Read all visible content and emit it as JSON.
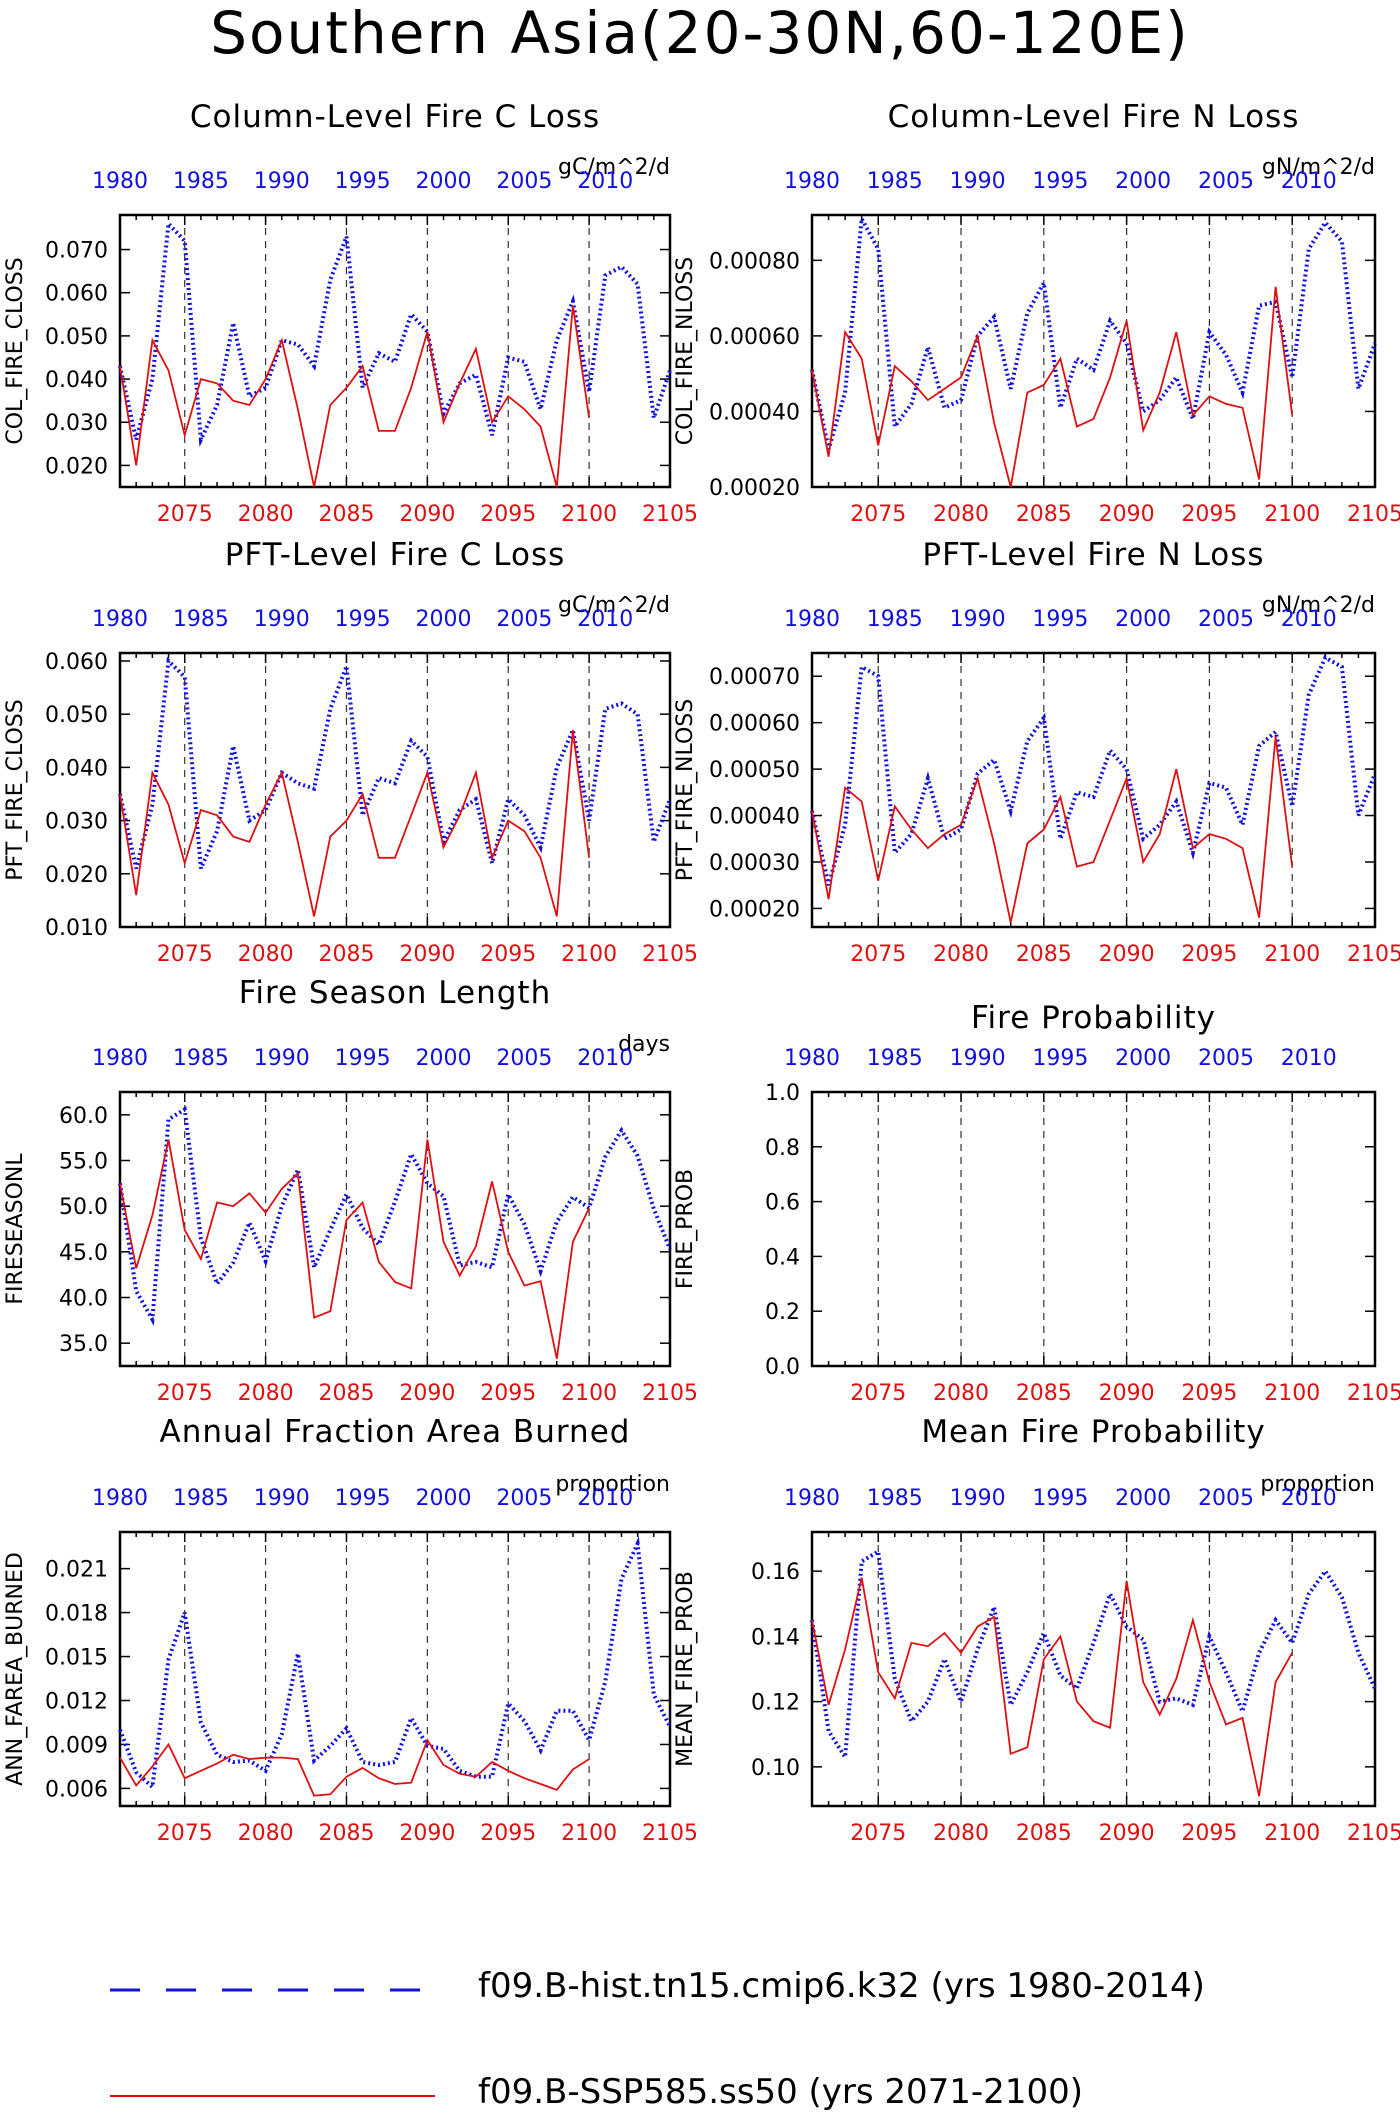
{
  "title": "Southern Asia(20-30N,60-120E)",
  "colors": {
    "hist": "#1010e0",
    "ssp": "#e01010",
    "axis": "#000000"
  },
  "legend": {
    "hist_label": "f09.B-hist.tn15.cmip6.k32 (yrs 1980-2014)",
    "ssp_label": "f09.B-SSP585.ss50 (yrs 2071-2100)"
  },
  "chart_data": [
    {
      "type": "line",
      "title": "Column-Level Fire C Loss",
      "ylabel": "COL_FIRE_CLOSS",
      "units": "gC/m^2/d",
      "ylim": [
        0.015,
        0.078
      ],
      "yticks": [
        "0.020",
        "0.030",
        "0.040",
        "0.050",
        "0.060",
        "0.070"
      ],
      "series": [
        {
          "x_start": 1980,
          "values": [
            0.043,
            0.026,
            0.04,
            0.076,
            0.072,
            0.026,
            0.034,
            0.053,
            0.036,
            0.038,
            0.049,
            0.048,
            0.043,
            0.063,
            0.073,
            0.038,
            0.046,
            0.044,
            0.055,
            0.051,
            0.032,
            0.039,
            0.041,
            0.027,
            0.045,
            0.044,
            0.033,
            0.049,
            0.058,
            0.037,
            0.064,
            0.066,
            0.062,
            0.031,
            0.042
          ]
        },
        {
          "x_start": 2071,
          "values": [
            0.043,
            0.02,
            0.049,
            0.042,
            0.027,
            0.04,
            0.039,
            0.035,
            0.034,
            0.04,
            0.049,
            0.033,
            0.015,
            0.034,
            0.038,
            0.043,
            0.028,
            0.028,
            0.038,
            0.051,
            0.03,
            0.039,
            0.047,
            0.03,
            0.036,
            0.033,
            0.029,
            0.015,
            0.057,
            0.031
          ]
        }
      ]
    },
    {
      "type": "line",
      "title": "Column-Level Fire N Loss",
      "ylabel": "COL_FIRE_NLOSS",
      "units": "gN/m^2/d",
      "ylim": [
        0.0002,
        0.00092
      ],
      "yticks": [
        "0.00020",
        "0.00040",
        "0.00060",
        "0.00080"
      ],
      "series": [
        {
          "x_start": 1980,
          "values": [
            0.00051,
            0.0003,
            0.00045,
            0.00091,
            0.00083,
            0.00036,
            0.00042,
            0.00057,
            0.00041,
            0.00043,
            0.0006,
            0.00065,
            0.00046,
            0.00066,
            0.00074,
            0.00041,
            0.00054,
            0.00051,
            0.00064,
            0.00058,
            0.0004,
            0.00043,
            0.00049,
            0.00038,
            0.00061,
            0.00055,
            0.00045,
            0.00068,
            0.00069,
            0.00049,
            0.00083,
            0.0009,
            0.00085,
            0.00046,
            0.00058
          ]
        },
        {
          "x_start": 2071,
          "values": [
            0.00051,
            0.00028,
            0.00061,
            0.00054,
            0.00031,
            0.00052,
            0.00048,
            0.00043,
            0.00046,
            0.00049,
            0.0006,
            0.00037,
            0.0002,
            0.00045,
            0.00047,
            0.00054,
            0.00036,
            0.00038,
            0.00049,
            0.00064,
            0.00035,
            0.00045,
            0.00061,
            0.00039,
            0.00044,
            0.00042,
            0.00041,
            0.00022,
            0.00073,
            0.00039
          ]
        }
      ]
    },
    {
      "type": "line",
      "title": "PFT-Level Fire C Loss",
      "ylabel": "PFT_FIRE_CLOSS",
      "units": "gC/m^2/d",
      "ylim": [
        0.01,
        0.0615
      ],
      "yticks": [
        "0.010",
        "0.020",
        "0.030",
        "0.040",
        "0.050",
        "0.060"
      ],
      "series": [
        {
          "x_start": 1980,
          "values": [
            0.035,
            0.021,
            0.033,
            0.06,
            0.057,
            0.021,
            0.028,
            0.044,
            0.03,
            0.032,
            0.039,
            0.037,
            0.036,
            0.051,
            0.059,
            0.031,
            0.038,
            0.037,
            0.045,
            0.042,
            0.026,
            0.032,
            0.034,
            0.022,
            0.034,
            0.031,
            0.025,
            0.04,
            0.047,
            0.03,
            0.051,
            0.052,
            0.05,
            0.026,
            0.034
          ]
        },
        {
          "x_start": 2071,
          "values": [
            0.035,
            0.016,
            0.039,
            0.033,
            0.022,
            0.032,
            0.031,
            0.027,
            0.026,
            0.033,
            0.039,
            0.026,
            0.012,
            0.027,
            0.03,
            0.035,
            0.023,
            0.023,
            0.031,
            0.039,
            0.025,
            0.031,
            0.039,
            0.023,
            0.03,
            0.028,
            0.023,
            0.012,
            0.047,
            0.023
          ]
        }
      ]
    },
    {
      "type": "line",
      "title": "PFT-Level Fire N Loss",
      "ylabel": "PFT_FIRE_NLOSS",
      "units": "gN/m^2/d",
      "ylim": [
        0.00016,
        0.00075
      ],
      "yticks": [
        "0.00020",
        "0.00030",
        "0.00040",
        "0.00050",
        "0.00060",
        "0.00070"
      ],
      "series": [
        {
          "x_start": 1980,
          "values": [
            0.00041,
            0.00025,
            0.00038,
            0.00072,
            0.0007,
            0.00032,
            0.00036,
            0.00048,
            0.00035,
            0.00037,
            0.00049,
            0.00052,
            0.00041,
            0.00056,
            0.00061,
            0.00035,
            0.00045,
            0.00044,
            0.00054,
            0.0005,
            0.00035,
            0.00038,
            0.00043,
            0.00032,
            0.00047,
            0.00046,
            0.00038,
            0.00055,
            0.00058,
            0.00042,
            0.00066,
            0.00074,
            0.00072,
            0.0004,
            0.00049
          ]
        },
        {
          "x_start": 2071,
          "values": [
            0.00041,
            0.00022,
            0.00046,
            0.00043,
            0.00026,
            0.00042,
            0.00037,
            0.00033,
            0.00036,
            0.00038,
            0.00048,
            0.00034,
            0.00017,
            0.00034,
            0.00037,
            0.00044,
            0.00029,
            0.0003,
            0.00039,
            0.00048,
            0.0003,
            0.00036,
            0.0005,
            0.00033,
            0.00036,
            0.00035,
            0.00033,
            0.00018,
            0.00057,
            0.00029
          ]
        }
      ]
    },
    {
      "type": "line",
      "title": "Fire Season Length",
      "ylabel": "FIRESEASONL",
      "units": "days",
      "ylim": [
        32.5,
        62.5
      ],
      "yticks": [
        "35.0",
        "40.0",
        "45.0",
        "50.0",
        "55.0",
        "60.0"
      ],
      "series": [
        {
          "x_start": 1980,
          "values": [
            52.5,
            40.7,
            37.6,
            59.5,
            60.6,
            46.5,
            41.5,
            43.8,
            48.2,
            44.0,
            50.0,
            54.0,
            43.3,
            47.4,
            51.3,
            47.6,
            45.8,
            50.5,
            55.7,
            52.5,
            51.1,
            43.5,
            43.9,
            43.3,
            51.3,
            48.0,
            42.9,
            48.3,
            51.0,
            49.8,
            55.4,
            58.3,
            55.5,
            49.7,
            45.3
          ]
        },
        {
          "x_start": 2071,
          "values": [
            52.5,
            43.2,
            49.0,
            57.3,
            47.4,
            44.2,
            50.4,
            50.0,
            51.4,
            49.3,
            51.9,
            53.6,
            37.8,
            38.5,
            48.5,
            50.4,
            43.9,
            41.7,
            41.0,
            57.3,
            46.1,
            42.4,
            45.6,
            52.7,
            45.0,
            41.3,
            41.8,
            33.3,
            46.1,
            49.8
          ]
        }
      ]
    },
    {
      "type": "line",
      "title": "Fire Probability",
      "ylabel": "FIRE_PROB",
      "units": "",
      "ylim": [
        0.0,
        1.0
      ],
      "yticks": [
        "0.0",
        "0.2",
        "0.4",
        "0.6",
        "0.8",
        "1.0"
      ],
      "series": []
    },
    {
      "type": "line",
      "title": "Annual Fraction Area Burned",
      "ylabel": "ANN_FAREA_BURNED",
      "units": "proportion",
      "ylim": [
        0.0048,
        0.0235
      ],
      "yticks": [
        "0.006",
        "0.009",
        "0.012",
        "0.015",
        "0.018",
        "0.021"
      ],
      "series": [
        {
          "x_start": 1980,
          "values": [
            0.01,
            0.0071,
            0.0061,
            0.0148,
            0.018,
            0.0105,
            0.0083,
            0.0078,
            0.0079,
            0.0072,
            0.0097,
            0.0152,
            0.0079,
            0.0089,
            0.0101,
            0.0078,
            0.0076,
            0.0078,
            0.0108,
            0.0089,
            0.0087,
            0.0072,
            0.0068,
            0.0068,
            0.0118,
            0.0106,
            0.0086,
            0.0113,
            0.0113,
            0.0093,
            0.0133,
            0.0203,
            0.0227,
            0.0124,
            0.0102
          ]
        },
        {
          "x_start": 2071,
          "values": [
            0.0081,
            0.0062,
            0.0075,
            0.009,
            0.0067,
            0.0072,
            0.0077,
            0.0083,
            0.008,
            0.0081,
            0.0081,
            0.008,
            0.0055,
            0.0056,
            0.0068,
            0.0074,
            0.0067,
            0.0063,
            0.0064,
            0.0093,
            0.0076,
            0.007,
            0.0068,
            0.0078,
            0.0072,
            0.0067,
            0.0063,
            0.0059,
            0.0073,
            0.008
          ]
        }
      ]
    },
    {
      "type": "line",
      "title": "Mean Fire Probability",
      "ylabel": "MEAN_FIRE_PROB",
      "units": "proportion",
      "ylim": [
        0.088,
        0.172
      ],
      "yticks": [
        "0.10",
        "0.12",
        "0.14",
        "0.16"
      ],
      "series": [
        {
          "x_start": 1980,
          "values": [
            0.145,
            0.111,
            0.103,
            0.163,
            0.166,
            0.127,
            0.114,
            0.12,
            0.133,
            0.12,
            0.136,
            0.149,
            0.119,
            0.129,
            0.141,
            0.128,
            0.124,
            0.138,
            0.153,
            0.143,
            0.139,
            0.12,
            0.121,
            0.119,
            0.14,
            0.129,
            0.117,
            0.135,
            0.145,
            0.138,
            0.153,
            0.16,
            0.152,
            0.135,
            0.124
          ]
        },
        {
          "x_start": 2071,
          "values": [
            0.145,
            0.119,
            0.136,
            0.158,
            0.129,
            0.121,
            0.138,
            0.137,
            0.141,
            0.135,
            0.143,
            0.146,
            0.104,
            0.106,
            0.133,
            0.14,
            0.12,
            0.114,
            0.112,
            0.157,
            0.126,
            0.116,
            0.127,
            0.145,
            0.126,
            0.113,
            0.115,
            0.091,
            0.126,
            0.135
          ]
        }
      ]
    }
  ],
  "x_axes": {
    "top_ticks": [
      "1980",
      "1985",
      "1990",
      "1995",
      "2000",
      "2005",
      "2010"
    ],
    "bottom_ticks": [
      "2075",
      "2080",
      "2085",
      "2090",
      "2095",
      "2100",
      "2105"
    ]
  }
}
